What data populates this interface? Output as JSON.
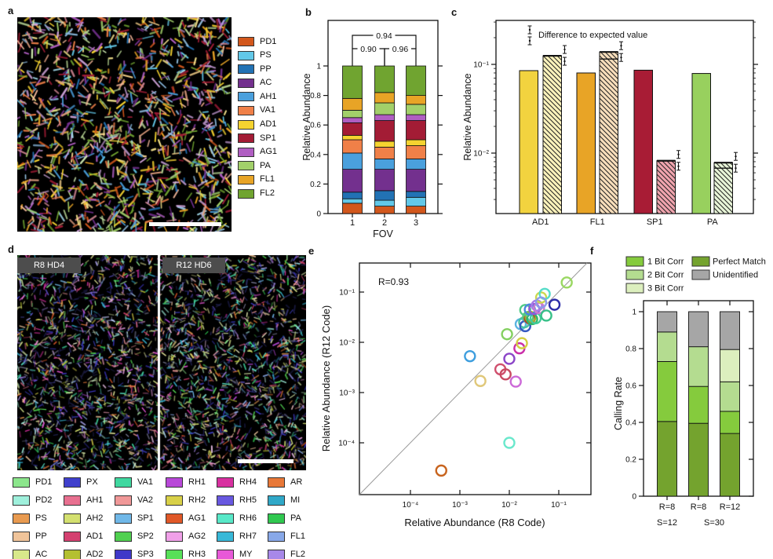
{
  "panels": {
    "a": {
      "label": "a",
      "legend": [
        {
          "name": "PD1",
          "color": "#d2571c"
        },
        {
          "name": "PS",
          "color": "#62c8e8"
        },
        {
          "name": "PP",
          "color": "#2272b4"
        },
        {
          "name": "AC",
          "color": "#73308e"
        },
        {
          "name": "AH1",
          "color": "#4aa0dd"
        },
        {
          "name": "VA1",
          "color": "#f08048"
        },
        {
          "name": "AD1",
          "color": "#f5d330"
        },
        {
          "name": "SP1",
          "color": "#a31c35"
        },
        {
          "name": "AG1",
          "color": "#b05ec2"
        },
        {
          "name": "PA",
          "color": "#a2d06a"
        },
        {
          "name": "FL1",
          "color": "#e8a426"
        },
        {
          "name": "FL2",
          "color": "#70a430"
        }
      ]
    },
    "b": {
      "label": "b"
    },
    "c": {
      "label": "c"
    },
    "d": {
      "label": "d",
      "sublabels": [
        "R8 HD4",
        "R12 HD6"
      ],
      "legend": [
        {
          "name": "PD1",
          "color": "#8ce68c"
        },
        {
          "name": "PD2",
          "color": "#9ff0dc"
        },
        {
          "name": "PS",
          "color": "#e89a50"
        },
        {
          "name": "PP",
          "color": "#f0c49a"
        },
        {
          "name": "AC",
          "color": "#d8e88a"
        },
        {
          "name": "PX",
          "color": "#4040cc"
        },
        {
          "name": "AH1",
          "color": "#e87090"
        },
        {
          "name": "AH2",
          "color": "#d4e070"
        },
        {
          "name": "AD1",
          "color": "#d44070"
        },
        {
          "name": "AD2",
          "color": "#b4c030"
        },
        {
          "name": "VA1",
          "color": "#40d8a0"
        },
        {
          "name": "VA2",
          "color": "#f09898"
        },
        {
          "name": "SP1",
          "color": "#70b8e8"
        },
        {
          "name": "SP2",
          "color": "#50d050"
        },
        {
          "name": "SP3",
          "color": "#4038c8"
        },
        {
          "name": "RH1",
          "color": "#b848d8"
        },
        {
          "name": "RH2",
          "color": "#d8d048"
        },
        {
          "name": "AG1",
          "color": "#e05828"
        },
        {
          "name": "AG2",
          "color": "#f0a0e8"
        },
        {
          "name": "RH3",
          "color": "#58e058"
        },
        {
          "name": "RH4",
          "color": "#d830a0"
        },
        {
          "name": "RH5",
          "color": "#6858e0"
        },
        {
          "name": "RH6",
          "color": "#58e8c8"
        },
        {
          "name": "RH7",
          "color": "#38b8d8"
        },
        {
          "name": "MY",
          "color": "#e858d8"
        },
        {
          "name": "AR",
          "color": "#e87838"
        },
        {
          "name": "MI",
          "color": "#30a8c8"
        },
        {
          "name": "PA",
          "color": "#30c850"
        },
        {
          "name": "FL1",
          "color": "#88a8e8"
        },
        {
          "name": "FL2",
          "color": "#a888e8"
        }
      ]
    },
    "e": {
      "label": "e"
    },
    "f": {
      "label": "f"
    }
  },
  "chart_data": [
    {
      "id": "b",
      "type": "bar",
      "stacked": true,
      "xlabel": "FOV",
      "ylabel": "Relative Abundance",
      "categories": [
        "1",
        "2",
        "3"
      ],
      "ylim": [
        0,
        1
      ],
      "ytick_values": [
        0,
        0.2,
        0.4,
        0.6,
        0.8,
        1
      ],
      "ytick_labels": [
        "0",
        "0.2",
        "0.4",
        "0.6",
        "0.8",
        "1"
      ],
      "series": [
        {
          "name": "PD1",
          "color": "#d2571c",
          "values": [
            0.07,
            0.05,
            0.05
          ]
        },
        {
          "name": "PS",
          "color": "#62c8e8",
          "values": [
            0.03,
            0.04,
            0.06
          ]
        },
        {
          "name": "PP",
          "color": "#2272b4",
          "values": [
            0.045,
            0.065,
            0.04
          ]
        },
        {
          "name": "AC",
          "color": "#73308e",
          "values": [
            0.155,
            0.145,
            0.15
          ]
        },
        {
          "name": "AH1",
          "color": "#4aa0dd",
          "values": [
            0.11,
            0.07,
            0.07
          ]
        },
        {
          "name": "VA1",
          "color": "#f08048",
          "values": [
            0.09,
            0.08,
            0.09
          ]
        },
        {
          "name": "AD1",
          "color": "#f5d330",
          "values": [
            0.03,
            0.04,
            0.04
          ]
        },
        {
          "name": "SP1",
          "color": "#a31c35",
          "values": [
            0.085,
            0.14,
            0.13
          ]
        },
        {
          "name": "AG1",
          "color": "#b05ec2",
          "values": [
            0.035,
            0.04,
            0.04
          ]
        },
        {
          "name": "PA",
          "color": "#a2d06a",
          "values": [
            0.05,
            0.08,
            0.07
          ]
        },
        {
          "name": "FL1",
          "color": "#e8a426",
          "values": [
            0.08,
            0.07,
            0.06
          ]
        },
        {
          "name": "FL2",
          "color": "#70a430",
          "values": [
            0.22,
            0.18,
            0.2
          ]
        }
      ],
      "annotations": [
        {
          "label": "0.90",
          "from": 0,
          "to": 1,
          "y": 57,
          "stub": 79
        },
        {
          "label": "0.96",
          "from": 1,
          "to": 2,
          "y": 57,
          "stub": 79
        },
        {
          "label": "0.94",
          "from": 0,
          "to": 2,
          "y": 40,
          "stub": 57
        }
      ]
    },
    {
      "id": "c",
      "type": "bar",
      "log_y": true,
      "ylabel": "Relative Abundance",
      "categories": [
        "AD1",
        "FL1",
        "SP1",
        "PA"
      ],
      "ytick_labels": [
        "10⁻¹",
        "10⁻²"
      ],
      "ytick_values": [
        0.1,
        0.01
      ],
      "legend_label": "Difference to expected value",
      "measured": {
        "values": [
          0.085,
          0.08,
          0.086,
          0.079
        ],
        "colors": [
          "#f2d33f",
          "#e8a426",
          "#a81c35",
          "#98d05e"
        ]
      },
      "expected": {
        "values": [
          0.125,
          0.138,
          0.0082,
          0.0078
        ],
        "fills": [
          "#fbf2bb",
          "#f8debb",
          "#f0a4ae",
          "#e8f5d8"
        ],
        "hatched": true
      }
    },
    {
      "id": "e",
      "type": "scatter",
      "log_x": true,
      "log_y": true,
      "annotation": "R=0.93",
      "xlabel": "Relative Abundance (R8 Code)",
      "ylabel": "Relative Abundance (R12 Code)",
      "xtick_labels": [
        "10⁻⁴",
        "10⁻³",
        "10⁻²",
        "10⁻¹"
      ],
      "ytick_labels": [
        "10⁻¹",
        "10⁻²",
        "10⁻³",
        "10⁻⁴"
      ],
      "points": [
        [
          0.00042,
          2.8e-05,
          "#c8641e"
        ],
        [
          0.01,
          0.0001,
          "#6ae8cc"
        ],
        [
          0.0016,
          0.0053,
          "#3e9ede"
        ],
        [
          0.0026,
          0.0017,
          "#e0c87a"
        ],
        [
          0.0066,
          0.0029,
          "#d0506e"
        ],
        [
          0.0084,
          0.0023,
          "#c84a62"
        ],
        [
          0.01,
          0.0047,
          "#8c46c8"
        ],
        [
          0.0135,
          0.00165,
          "#cc6ad8"
        ],
        [
          0.016,
          0.0076,
          "#ca2fa8"
        ],
        [
          0.018,
          0.0096,
          "#d4ce42"
        ],
        [
          0.009,
          0.0145,
          "#84d060"
        ],
        [
          0.017,
          0.023,
          "#5ab4e0"
        ],
        [
          0.02,
          0.025,
          "#48c2a2"
        ],
        [
          0.021,
          0.021,
          "#3558c0"
        ],
        [
          0.024,
          0.032,
          "#58c878"
        ],
        [
          0.026,
          0.03,
          "#b04028"
        ],
        [
          0.027,
          0.032,
          "#a8a832"
        ],
        [
          0.029,
          0.029,
          "#30b868"
        ],
        [
          0.034,
          0.03,
          "#40cc9c"
        ],
        [
          0.021,
          0.044,
          "#50cc88"
        ],
        [
          0.026,
          0.045,
          "#4a86dc"
        ],
        [
          0.032,
          0.046,
          "#9256d8"
        ],
        [
          0.036,
          0.054,
          "#a87ae8"
        ],
        [
          0.04,
          0.048,
          "#cc7ad0"
        ],
        [
          0.044,
          0.078,
          "#ccd84e"
        ],
        [
          0.052,
          0.092,
          "#54dcc8"
        ],
        [
          0.044,
          0.062,
          "#8c9ce8"
        ],
        [
          0.082,
          0.056,
          "#2c2ca8"
        ],
        [
          0.056,
          0.034,
          "#38c088"
        ],
        [
          0.145,
          0.155,
          "#9ad862"
        ]
      ]
    },
    {
      "id": "f",
      "type": "bar",
      "stacked": true,
      "ylabel": "Calling Rate",
      "ylim": [
        0,
        1
      ],
      "ytick_values": [
        0,
        0.2,
        0.4,
        0.6,
        0.8,
        1
      ],
      "ytick_labels": [
        "0",
        "0.2",
        "0.4",
        "0.6",
        "0.8",
        "1"
      ],
      "xlabels_top": [
        "R=8",
        "R=8",
        "R=12"
      ],
      "xlabels_bottom": [
        {
          "text": "S=12",
          "pos": 0
        },
        {
          "text": "S=30",
          "pos": 1.5
        }
      ],
      "series": [
        {
          "name": "Perfect Match",
          "color": "#74a32e",
          "values": [
            0.405,
            0.395,
            0.34
          ]
        },
        {
          "name": "1 Bit Corr",
          "color": "#85cb3d",
          "values": [
            0.325,
            0.2,
            0.12
          ]
        },
        {
          "name": "2 Bit Corr",
          "color": "#b4dc90",
          "values": [
            0.16,
            0.215,
            0.16
          ]
        },
        {
          "name": "3 Bit Corr",
          "color": "#dcefbe",
          "values": [
            0,
            0,
            0.175
          ]
        },
        {
          "name": "Unidentified",
          "color": "#a6a6a6",
          "values": [
            0.11,
            0.19,
            0.205
          ]
        }
      ],
      "legend_cols": [
        [
          "1 Bit Corr",
          "2 Bit Corr",
          "3 Bit Corr"
        ],
        [
          "Perfect Match",
          "Unidentified"
        ]
      ]
    }
  ]
}
